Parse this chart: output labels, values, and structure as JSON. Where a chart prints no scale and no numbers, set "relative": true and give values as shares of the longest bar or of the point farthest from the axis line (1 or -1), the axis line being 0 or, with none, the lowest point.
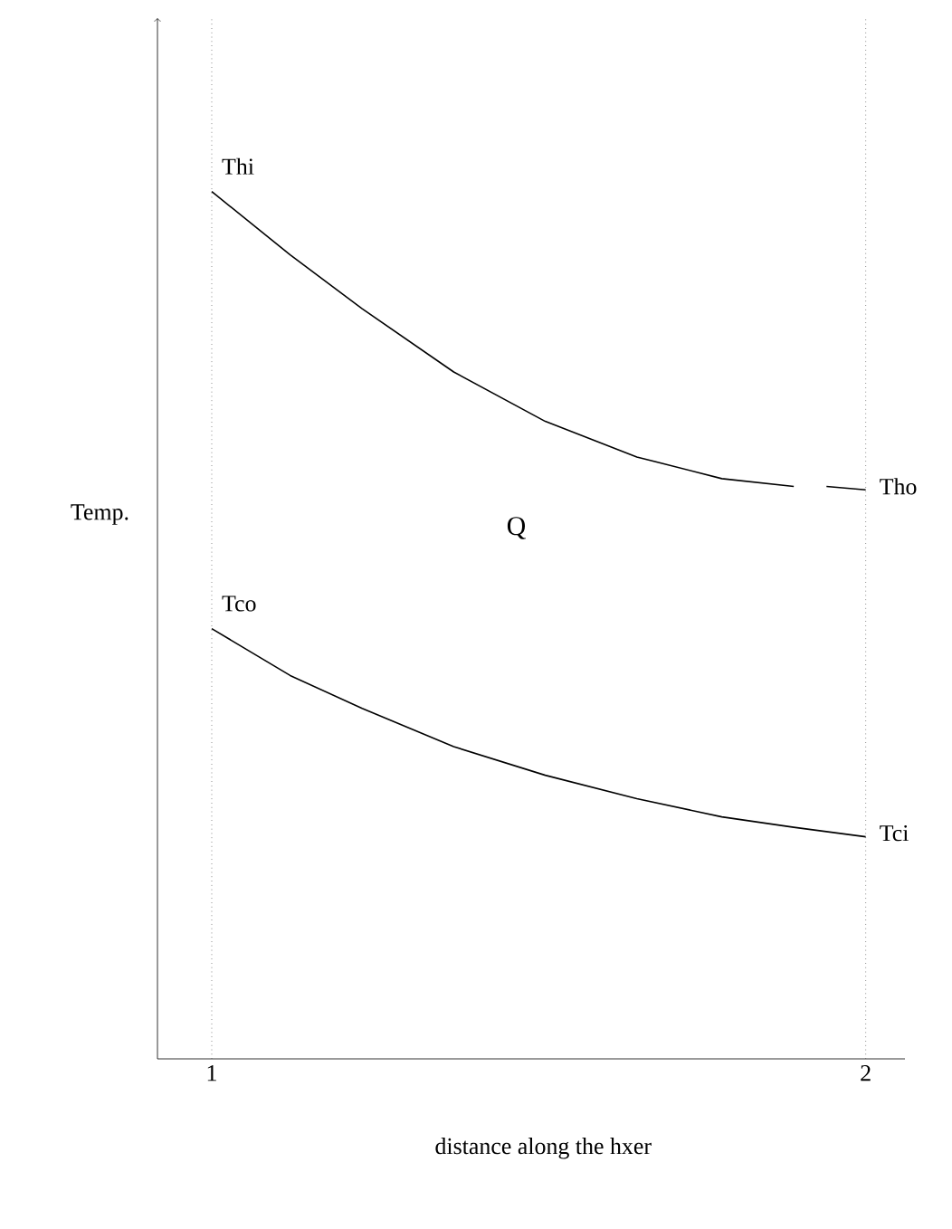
{
  "chart_data": {
    "type": "line",
    "relative": true,
    "xlabel": "distance along the hxer",
    "ylabel": "Temp.",
    "xlim": [
      0.917,
      2.06
    ],
    "xticks": [
      1,
      2
    ],
    "series": [
      {
        "color": "#000000",
        "x": [
          1.0,
          1.12,
          1.23,
          1.37,
          1.51,
          1.65,
          1.78,
          1.89,
          1.915,
          1.94,
          2.0
        ],
        "values": [
          1.0,
          0.927,
          0.865,
          0.792,
          0.735,
          0.694,
          0.669,
          0.66,
          null,
          0.66,
          0.656
        ]
      },
      {
        "color": "#000000",
        "x": [
          1.0,
          1.12,
          1.23,
          1.37,
          1.51,
          1.65,
          1.78,
          1.89,
          2.0
        ],
        "values": [
          0.496,
          0.442,
          0.404,
          0.36,
          0.327,
          0.3,
          0.279,
          0.267,
          0.256
        ]
      }
    ],
    "ref_lines": [
      {
        "axis": "x",
        "value": 1,
        "line_style": "dotted"
      },
      {
        "axis": "x",
        "value": 2,
        "line_style": "dotted"
      }
    ],
    "annotations": [
      "Thi",
      "Tho",
      "Tco",
      "Tci",
      "Q"
    ],
    "marker": "none",
    "line_style": "solid",
    "grid": false
  }
}
